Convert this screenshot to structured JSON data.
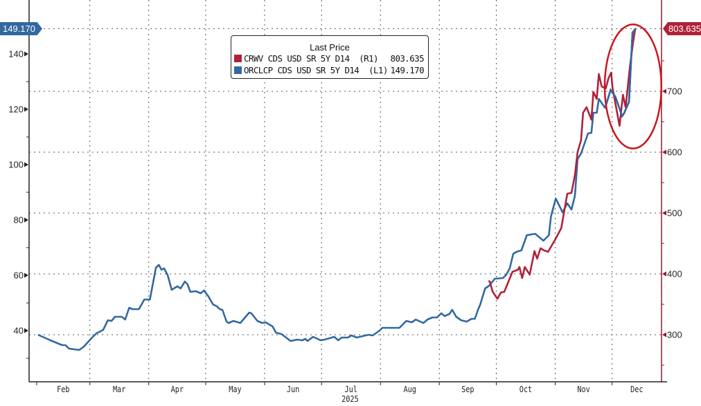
{
  "chart_data": {
    "type": "line",
    "title": "",
    "xlabel": "2025",
    "x_unit": "days since Feb 1, 2025",
    "x_ticks": [
      {
        "label": "Feb",
        "start": 0,
        "end": 28
      },
      {
        "label": "Mar",
        "start": 28,
        "end": 59
      },
      {
        "label": "Apr",
        "start": 59,
        "end": 89
      },
      {
        "label": "May",
        "start": 89,
        "end": 120
      },
      {
        "label": "Jun",
        "start": 120,
        "end": 150
      },
      {
        "label": "Jul",
        "start": 150,
        "end": 181
      },
      {
        "label": "Aug",
        "start": 181,
        "end": 212
      },
      {
        "label": "Sep",
        "start": 212,
        "end": 242
      },
      {
        "label": "Oct",
        "start": 242,
        "end": 273
      },
      {
        "label": "Nov",
        "start": 273,
        "end": 303
      },
      {
        "label": "Dec",
        "start": 303,
        "end": 329
      }
    ],
    "xlim": [
      -4,
      329
    ],
    "y_left": {
      "ticks": [
        40,
        60,
        80,
        100,
        120,
        140
      ],
      "lim": [
        21.5,
        159.5
      ]
    },
    "y_right": {
      "ticks": [
        300,
        400,
        500,
        600,
        700
      ],
      "lim": [
        222.7,
        850
      ]
    },
    "legend": {
      "title": "Last Price",
      "placement": "top-center"
    },
    "series": [
      {
        "name": "CRWV CDS USD SR 5Y D14",
        "axis_tag": "(R1)",
        "axis": "right",
        "last": "803.635",
        "color": "#b0213a",
        "points": [
          [
            237.9,
            388.6
          ],
          [
            238.6,
            387.5
          ],
          [
            240.1,
            370.5
          ],
          [
            242.6,
            359.1
          ],
          [
            244.4,
            369.3
          ],
          [
            246.2,
            370.5
          ],
          [
            250.5,
            403.4
          ],
          [
            253.4,
            406.8
          ],
          [
            254.2,
            411.4
          ],
          [
            255.6,
            393.2
          ],
          [
            257.0,
            411.4
          ],
          [
            259.6,
            398.9
          ],
          [
            262.1,
            437.5
          ],
          [
            263.5,
            425.0
          ],
          [
            265.3,
            442.0
          ],
          [
            267.1,
            438.6
          ],
          [
            269.3,
            436.4
          ],
          [
            273.3,
            458.0
          ],
          [
            276.2,
            475.0
          ],
          [
            279.4,
            531.8
          ],
          [
            281.6,
            533.0
          ],
          [
            283.4,
            562.5
          ],
          [
            284.8,
            600.0
          ],
          [
            286.6,
            619.3
          ],
          [
            287.7,
            664.8
          ],
          [
            289.5,
            673.9
          ],
          [
            292.1,
            653.4
          ],
          [
            293.1,
            698.9
          ],
          [
            294.9,
            687.5
          ],
          [
            296.0,
            728.4
          ],
          [
            297.5,
            708.0
          ],
          [
            299.6,
            704.5
          ],
          [
            301.1,
            721.6
          ],
          [
            302.5,
            730.7
          ],
          [
            303.2,
            705.7
          ],
          [
            306.9,
            643.2
          ],
          [
            308.7,
            694.3
          ],
          [
            310.1,
            673.9
          ],
          [
            312.3,
            738.6
          ],
          [
            314.1,
            781.8
          ],
          [
            315.2,
            803.635
          ]
        ]
      },
      {
        "name": "ORCLCP CDS USD SR 5Y D14",
        "axis_tag": "(L1)",
        "axis": "left",
        "last": "149.170",
        "color": "#3268a0",
        "points": [
          [
            0.7,
            38.5
          ],
          [
            7.2,
            36.5
          ],
          [
            13.4,
            34.75
          ],
          [
            15.2,
            34.75
          ],
          [
            17.0,
            33.5
          ],
          [
            22.4,
            33.0
          ],
          [
            24.9,
            34.25
          ],
          [
            28.5,
            37.0
          ],
          [
            31.4,
            39.0
          ],
          [
            35.0,
            40.25
          ],
          [
            37.5,
            43.75
          ],
          [
            39.4,
            43.5
          ],
          [
            41.2,
            45.0
          ],
          [
            44.8,
            45.0
          ],
          [
            46.6,
            44.0
          ],
          [
            48.7,
            48.25
          ],
          [
            50.5,
            47.75
          ],
          [
            53.8,
            47.75
          ],
          [
            56.7,
            51.25
          ],
          [
            59.6,
            51.25
          ],
          [
            62.8,
            62.75
          ],
          [
            64.3,
            63.75
          ],
          [
            65.7,
            62.0
          ],
          [
            67.1,
            62.5
          ],
          [
            69.0,
            60.0
          ],
          [
            71.1,
            54.75
          ],
          [
            74.0,
            56.0
          ],
          [
            75.8,
            55.25
          ],
          [
            78.0,
            57.75
          ],
          [
            79.4,
            56.75
          ],
          [
            80.9,
            54.0
          ],
          [
            83.8,
            54.25
          ],
          [
            86.3,
            53.5
          ],
          [
            88.1,
            54.5
          ],
          [
            90.3,
            52.5
          ],
          [
            92.8,
            49.5
          ],
          [
            94.9,
            48.75
          ],
          [
            96.4,
            47.75
          ],
          [
            97.8,
            47.5
          ],
          [
            100.0,
            43.25
          ],
          [
            101.1,
            42.75
          ],
          [
            103.6,
            43.5
          ],
          [
            107.2,
            42.75
          ],
          [
            111.9,
            46.5
          ],
          [
            113.0,
            46.25
          ],
          [
            116.2,
            43.5
          ],
          [
            118.8,
            42.75
          ],
          [
            120.6,
            43.0
          ],
          [
            124.2,
            41.5
          ],
          [
            126.0,
            39.25
          ],
          [
            128.9,
            38.75
          ],
          [
            131.8,
            37.25
          ],
          [
            133.6,
            36.25
          ],
          [
            137.2,
            36.75
          ],
          [
            139.7,
            36.5
          ],
          [
            141.5,
            37.0
          ],
          [
            142.6,
            36.25
          ],
          [
            145.5,
            37.75
          ],
          [
            149.5,
            36.5
          ],
          [
            151.6,
            36.75
          ],
          [
            156.7,
            37.75
          ],
          [
            158.8,
            36.5
          ],
          [
            160.6,
            37.5
          ],
          [
            163.9,
            37.5
          ],
          [
            165.7,
            38.25
          ],
          [
            168.6,
            37.5
          ],
          [
            174.7,
            38.5
          ],
          [
            176.9,
            38.25
          ],
          [
            180.5,
            40.0
          ],
          [
            182.0,
            41.0
          ],
          [
            187.4,
            41.0
          ],
          [
            191.0,
            41.0
          ],
          [
            194.6,
            43.5
          ],
          [
            197.5,
            43.0
          ],
          [
            199.6,
            44.0
          ],
          [
            203.6,
            42.75
          ],
          [
            205.8,
            44.0
          ],
          [
            208.3,
            44.75
          ],
          [
            210.8,
            44.75
          ],
          [
            213.0,
            46.25
          ],
          [
            214.8,
            45.25
          ],
          [
            217.3,
            46.0
          ],
          [
            218.8,
            47.5
          ],
          [
            220.9,
            45.0
          ],
          [
            223.5,
            43.75
          ],
          [
            226.4,
            43.25
          ],
          [
            228.9,
            44.25
          ],
          [
            230.7,
            44.25
          ],
          [
            232.5,
            47.75
          ],
          [
            233.6,
            49.5
          ],
          [
            236.1,
            55.25
          ],
          [
            238.3,
            56.25
          ],
          [
            241.2,
            58.75
          ],
          [
            245.5,
            59.0
          ],
          [
            247.3,
            60.25
          ],
          [
            249.1,
            62.5
          ],
          [
            250.9,
            67.75
          ],
          [
            252.7,
            68.5
          ],
          [
            255.2,
            69.0
          ],
          [
            258.1,
            74.5
          ],
          [
            262.5,
            75.0
          ],
          [
            266.8,
            72.5
          ],
          [
            269.7,
            74.5
          ],
          [
            270.8,
            81.25
          ],
          [
            273.3,
            87.75
          ],
          [
            276.9,
            82.75
          ],
          [
            279.4,
            86.0
          ],
          [
            281.6,
            83.75
          ],
          [
            283.4,
            88.75
          ],
          [
            284.8,
            102.0
          ],
          [
            286.6,
            104.0
          ],
          [
            290.3,
            111.25
          ],
          [
            292.1,
            111.5
          ],
          [
            293.1,
            118.75
          ],
          [
            294.9,
            118.75
          ],
          [
            296.0,
            123.75
          ],
          [
            299.3,
            120.5
          ],
          [
            302.2,
            127.0
          ],
          [
            304.7,
            124.5
          ],
          [
            308.3,
            117.5
          ],
          [
            309.4,
            118.75
          ],
          [
            311.9,
            122.75
          ],
          [
            313.7,
            147.75
          ],
          [
            315.5,
            149.17
          ]
        ]
      }
    ],
    "annotation": {
      "shape": "ellipse",
      "color": "#c8161d",
      "around_x": [
        302,
        326
      ],
      "around_y_right": [
        606,
        810
      ]
    },
    "grid": true
  }
}
